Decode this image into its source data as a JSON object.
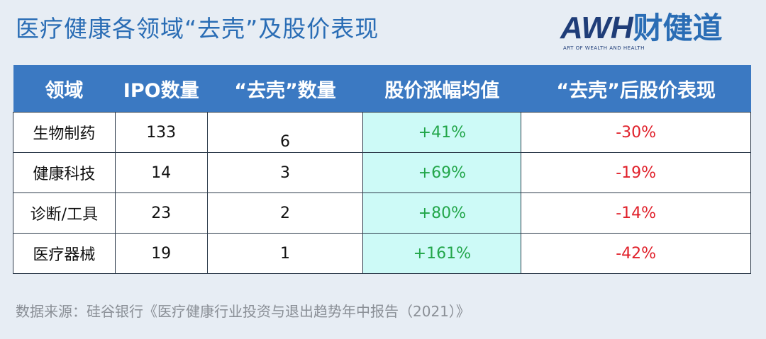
{
  "header": {
    "title": "医疗健康各领域“去壳”及股价表现",
    "logo": {
      "mark": "AWH",
      "name": "财健道",
      "tagline": "ART OF WEALTH AND HEALTH"
    }
  },
  "table": {
    "columns": [
      "领域",
      "IPO数量",
      "“去壳”数量",
      "股价涨幅均值",
      "“去壳”后股价表现"
    ],
    "rows": [
      [
        "生物制药",
        133,
        6,
        "+41%",
        "-30%"
      ],
      [
        "健康科技",
        14,
        3,
        "+69%",
        "-19%"
      ],
      [
        "诊断/工具",
        23,
        2,
        "+80%",
        "-14%"
      ],
      [
        "医疗器械",
        19,
        1,
        "+161%",
        "-42%"
      ]
    ]
  },
  "footer": {
    "source": "数据来源：硅谷银行《医疗健康行业投资与退出趋势年中报告（2021）》"
  }
}
